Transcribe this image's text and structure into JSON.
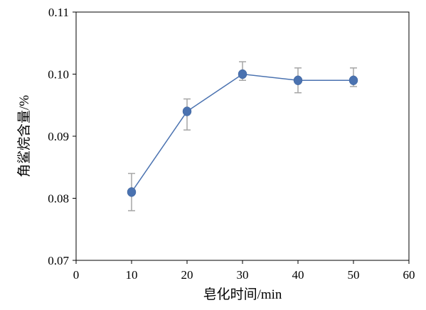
{
  "chart_data": {
    "type": "scatter",
    "title": "",
    "xlabel": "皂化时间/min",
    "ylabel": "角鲨烷含量/%",
    "xlim": [
      0,
      60
    ],
    "ylim": [
      0.07,
      0.11
    ],
    "xticks": [
      "0",
      "10",
      "20",
      "30",
      "40",
      "50",
      "60"
    ],
    "yticks": [
      "0.07",
      "0.08",
      "0.09",
      "0.10",
      "0.11"
    ],
    "grid": false,
    "legend": "none",
    "series": [
      {
        "x": [
          10,
          20,
          30,
          40,
          50
        ],
        "y": [
          0.081,
          0.094,
          0.1,
          0.099,
          0.099
        ],
        "err_low": [
          0.078,
          0.091,
          0.099,
          0.097,
          0.098
        ],
        "err_high": [
          0.084,
          0.096,
          0.102,
          0.101,
          0.101
        ],
        "color": "#4a72b0",
        "errorbar_color": "#a6a6a6",
        "lines": true
      }
    ]
  }
}
